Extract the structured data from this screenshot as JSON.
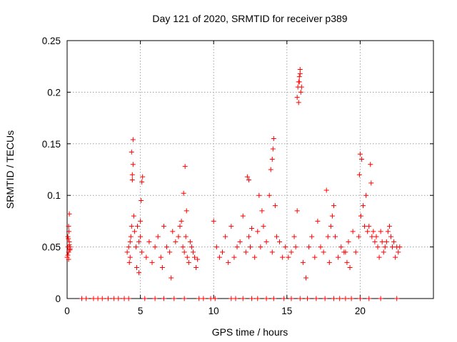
{
  "chart_data": {
    "type": "scatter",
    "title": "Day 121 of 2020, SRMTID for receiver p389",
    "xlabel": "GPS time / hours",
    "ylabel": "SRMTID / TECUs",
    "xlim": [
      0,
      25
    ],
    "ylim": [
      0,
      0.25
    ],
    "x_ticks": [
      0,
      5,
      10,
      15,
      20
    ],
    "x_tick_labels": [
      "0",
      "5",
      "10",
      "15",
      "20"
    ],
    "y_ticks": [
      0,
      0.05,
      0.1,
      0.15,
      0.2,
      0.25
    ],
    "y_tick_labels": [
      "0",
      "0.05",
      "0.1",
      "0.15",
      "0.2",
      "0.25"
    ],
    "grid": true,
    "marker": "plus",
    "color": "#ff0000",
    "series": [
      {
        "name": "SRMTID",
        "x": [
          0.0,
          0.05,
          0.1,
          0.15,
          0.2,
          0.05,
          0.1,
          0.15,
          0.1,
          0.15,
          0.05,
          0.2,
          0.12,
          0.08,
          0.18,
          4.1,
          4.2,
          4.3,
          4.35,
          4.4,
          4.45,
          4.5,
          4.4,
          4.5,
          4.3,
          4.45,
          4.25,
          4.55,
          4.6,
          4.7,
          4.8,
          4.9,
          5.0,
          5.1,
          5.0,
          5.1,
          4.9,
          5.15,
          4.75,
          5.05,
          5.4,
          5.6,
          5.8,
          6.0,
          6.2,
          6.4,
          6.5,
          6.6,
          6.8,
          7.0,
          7.1,
          7.2,
          7.4,
          7.6,
          7.8,
          7.9,
          8.0,
          8.1,
          8.2,
          8.3,
          8.4,
          8.5,
          8.6,
          8.7,
          8.8,
          8.9,
          7.7,
          8.05,
          7.95,
          8.15,
          10.0,
          10.2,
          10.4,
          10.6,
          10.8,
          11.0,
          11.2,
          11.4,
          11.6,
          11.8,
          12.0,
          12.2,
          12.4,
          12.5,
          12.6,
          12.8,
          13.0,
          13.2,
          13.4,
          13.6,
          13.8,
          14.0,
          14.1,
          14.2,
          14.3,
          14.5,
          14.7,
          14.9,
          15.1,
          15.3,
          15.5,
          13.9,
          14.0,
          14.05,
          12.3,
          12.4,
          13.1,
          13.3,
          15.7,
          15.75,
          15.8,
          15.85,
          15.9,
          15.95,
          16.0,
          15.8,
          15.9,
          15.85,
          15.6,
          15.7,
          16.1,
          16.3,
          16.5,
          16.7,
          16.9,
          17.1,
          17.3,
          17.5,
          17.7,
          17.9,
          18.1,
          18.3,
          18.5,
          18.7,
          18.9,
          19.1,
          19.3,
          19.5,
          19.7,
          19.9,
          20.0,
          20.1,
          20.2,
          20.3,
          19.95,
          20.05,
          20.4,
          20.5,
          20.6,
          20.8,
          21.0,
          21.2,
          21.4,
          21.6,
          21.8,
          22.0,
          22.2,
          22.4,
          22.6,
          22.7,
          20.9,
          21.1,
          21.3,
          21.5,
          21.7,
          21.9,
          22.1,
          22.3,
          22.5,
          20.7,
          20.75,
          18.0,
          18.2,
          17.8,
          19.0,
          19.2,
          1.0,
          1.3,
          1.8,
          2.1,
          2.4,
          2.8,
          3.2,
          3.5,
          3.9,
          4.2,
          5.3,
          6.0,
          6.6,
          7.3,
          8.0,
          9.0,
          9.3,
          9.8,
          10.1,
          11.2,
          11.5,
          12.0,
          12.6,
          13.0,
          13.6,
          14.1,
          14.8,
          15.3,
          15.9,
          16.4,
          17.0,
          17.6,
          18.2,
          18.6,
          19.0,
          19.4,
          20.0,
          20.6,
          21.4,
          22.5
        ],
        "y": [
          0.04,
          0.05,
          0.045,
          0.055,
          0.048,
          0.06,
          0.07,
          0.082,
          0.038,
          0.052,
          0.042,
          0.05,
          0.065,
          0.058,
          0.047,
          0.045,
          0.05,
          0.04,
          0.06,
          0.07,
          0.12,
          0.13,
          0.142,
          0.154,
          0.055,
          0.115,
          0.035,
          0.08,
          0.065,
          0.05,
          0.07,
          0.055,
          0.06,
          0.045,
          0.075,
          0.113,
          0.025,
          0.118,
          0.03,
          0.095,
          0.04,
          0.055,
          0.035,
          0.05,
          0.06,
          0.04,
          0.03,
          0.07,
          0.05,
          0.045,
          0.02,
          0.065,
          0.055,
          0.06,
          0.075,
          0.05,
          0.045,
          0.06,
          0.04,
          0.035,
          0.055,
          0.05,
          0.045,
          0.04,
          0.03,
          0.038,
          0.07,
          0.128,
          0.102,
          0.085,
          0.075,
          0.05,
          0.04,
          0.045,
          0.06,
          0.035,
          0.07,
          0.04,
          0.05,
          0.055,
          0.08,
          0.045,
          0.06,
          0.05,
          0.068,
          0.04,
          0.065,
          0.05,
          0.07,
          0.055,
          0.1,
          0.045,
          0.155,
          0.09,
          0.06,
          0.055,
          0.04,
          0.05,
          0.04,
          0.045,
          0.06,
          0.125,
          0.135,
          0.145,
          0.118,
          0.115,
          0.1,
          0.085,
          0.195,
          0.205,
          0.21,
          0.215,
          0.222,
          0.2,
          0.205,
          0.19,
          0.218,
          0.21,
          0.05,
          0.085,
          0.035,
          0.02,
          0.05,
          0.06,
          0.04,
          0.075,
          0.05,
          0.045,
          0.105,
          0.035,
          0.08,
          0.06,
          0.04,
          0.05,
          0.045,
          0.035,
          0.03,
          0.065,
          0.045,
          0.06,
          0.14,
          0.135,
          0.09,
          0.07,
          0.12,
          0.08,
          0.1,
          0.065,
          0.07,
          0.06,
          0.055,
          0.05,
          0.065,
          0.045,
          0.055,
          0.07,
          0.05,
          0.04,
          0.045,
          0.05,
          0.065,
          0.06,
          0.04,
          0.055,
          0.05,
          0.065,
          0.06,
          0.055,
          0.05,
          0.13,
          0.112,
          0.07,
          0.09,
          0.06,
          0.045,
          0.055,
          0,
          0,
          0,
          0,
          0,
          0,
          0,
          0,
          0,
          0,
          0,
          0,
          0,
          0,
          0,
          0,
          0,
          0,
          0,
          0,
          0,
          0,
          0,
          0,
          0,
          0,
          0,
          0,
          0,
          0,
          0,
          0,
          0,
          0,
          0,
          0,
          0,
          0,
          0,
          0
        ]
      }
    ]
  }
}
